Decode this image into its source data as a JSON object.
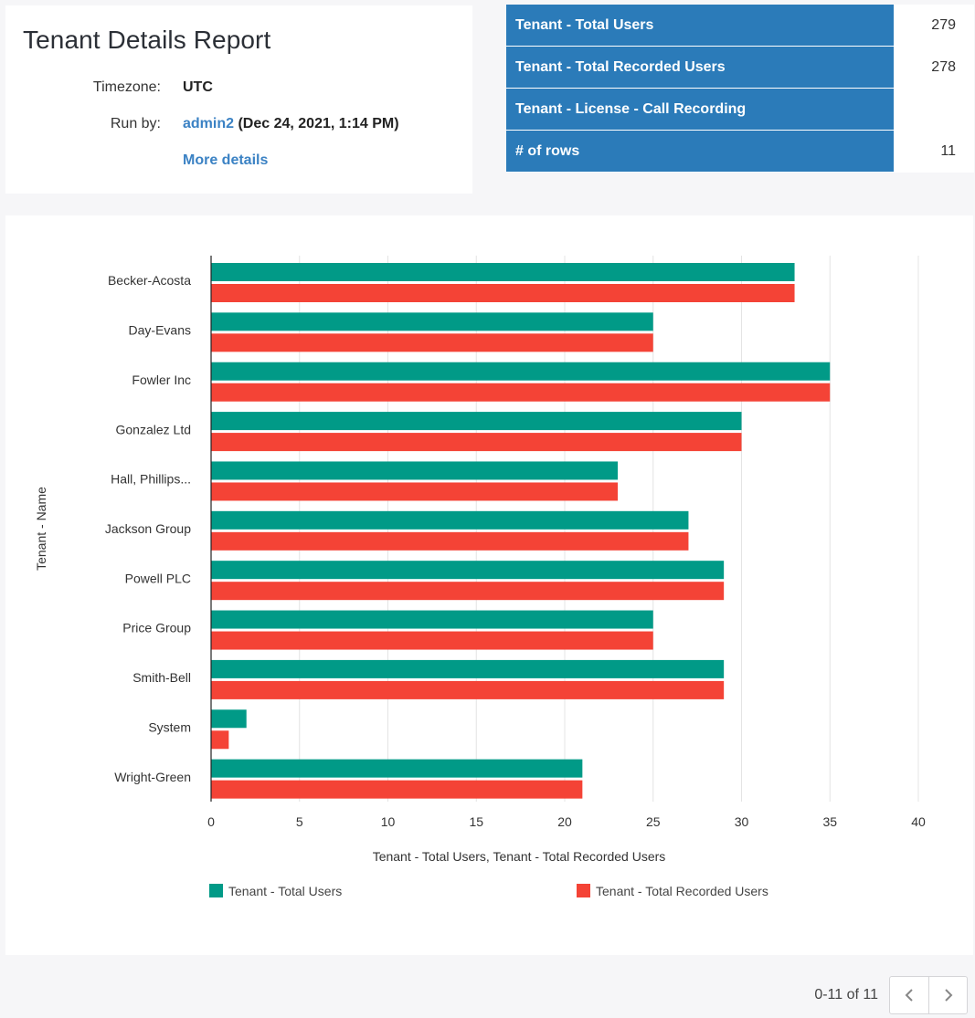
{
  "report": {
    "title": "Tenant Details Report",
    "timezone_label": "Timezone:",
    "timezone_value": "UTC",
    "run_by_label": "Run by:",
    "run_by_user": "admin2",
    "run_by_time": "(Dec 24, 2021, 1:14 PM)",
    "more_details": "More details"
  },
  "summary": [
    {
      "label": "Tenant - Total Users",
      "value": "279"
    },
    {
      "label": "Tenant - Total Recorded Users",
      "value": "278"
    },
    {
      "label": "Tenant - License - Call Recording",
      "value": ""
    },
    {
      "label": "# of rows",
      "value": "11"
    }
  ],
  "colors": {
    "total_users": "#019a87",
    "recorded_users": "#f44336",
    "header_blue": "#2b7bb9",
    "link": "#3b82c4"
  },
  "chart_data": {
    "type": "bar",
    "orientation": "horizontal",
    "categories": [
      "Becker-Acosta",
      "Day-Evans",
      "Fowler Inc",
      "Gonzalez Ltd",
      "Hall, Phillips...",
      "Jackson Group",
      "Powell PLC",
      "Price Group",
      "Smith-Bell",
      "System",
      "Wright-Green"
    ],
    "series": [
      {
        "name": "Tenant - Total Users",
        "values": [
          33,
          25,
          35,
          30,
          23,
          27,
          29,
          25,
          29,
          2,
          21
        ]
      },
      {
        "name": "Tenant - Total Recorded Users",
        "values": [
          33,
          25,
          35,
          30,
          23,
          27,
          29,
          25,
          29,
          1,
          21
        ]
      }
    ],
    "xlabel": "Tenant - Total Users, Tenant - Total Recorded Users",
    "ylabel": "Tenant - Name",
    "xlim": [
      0,
      40
    ],
    "xticks": [
      0,
      5,
      10,
      15,
      20,
      25,
      30,
      35,
      40
    ],
    "grid": true,
    "legend": "bottom"
  },
  "pager": {
    "text": "0-11 of 11",
    "prev_icon": "chevron-left-icon",
    "next_icon": "chevron-right-icon"
  }
}
